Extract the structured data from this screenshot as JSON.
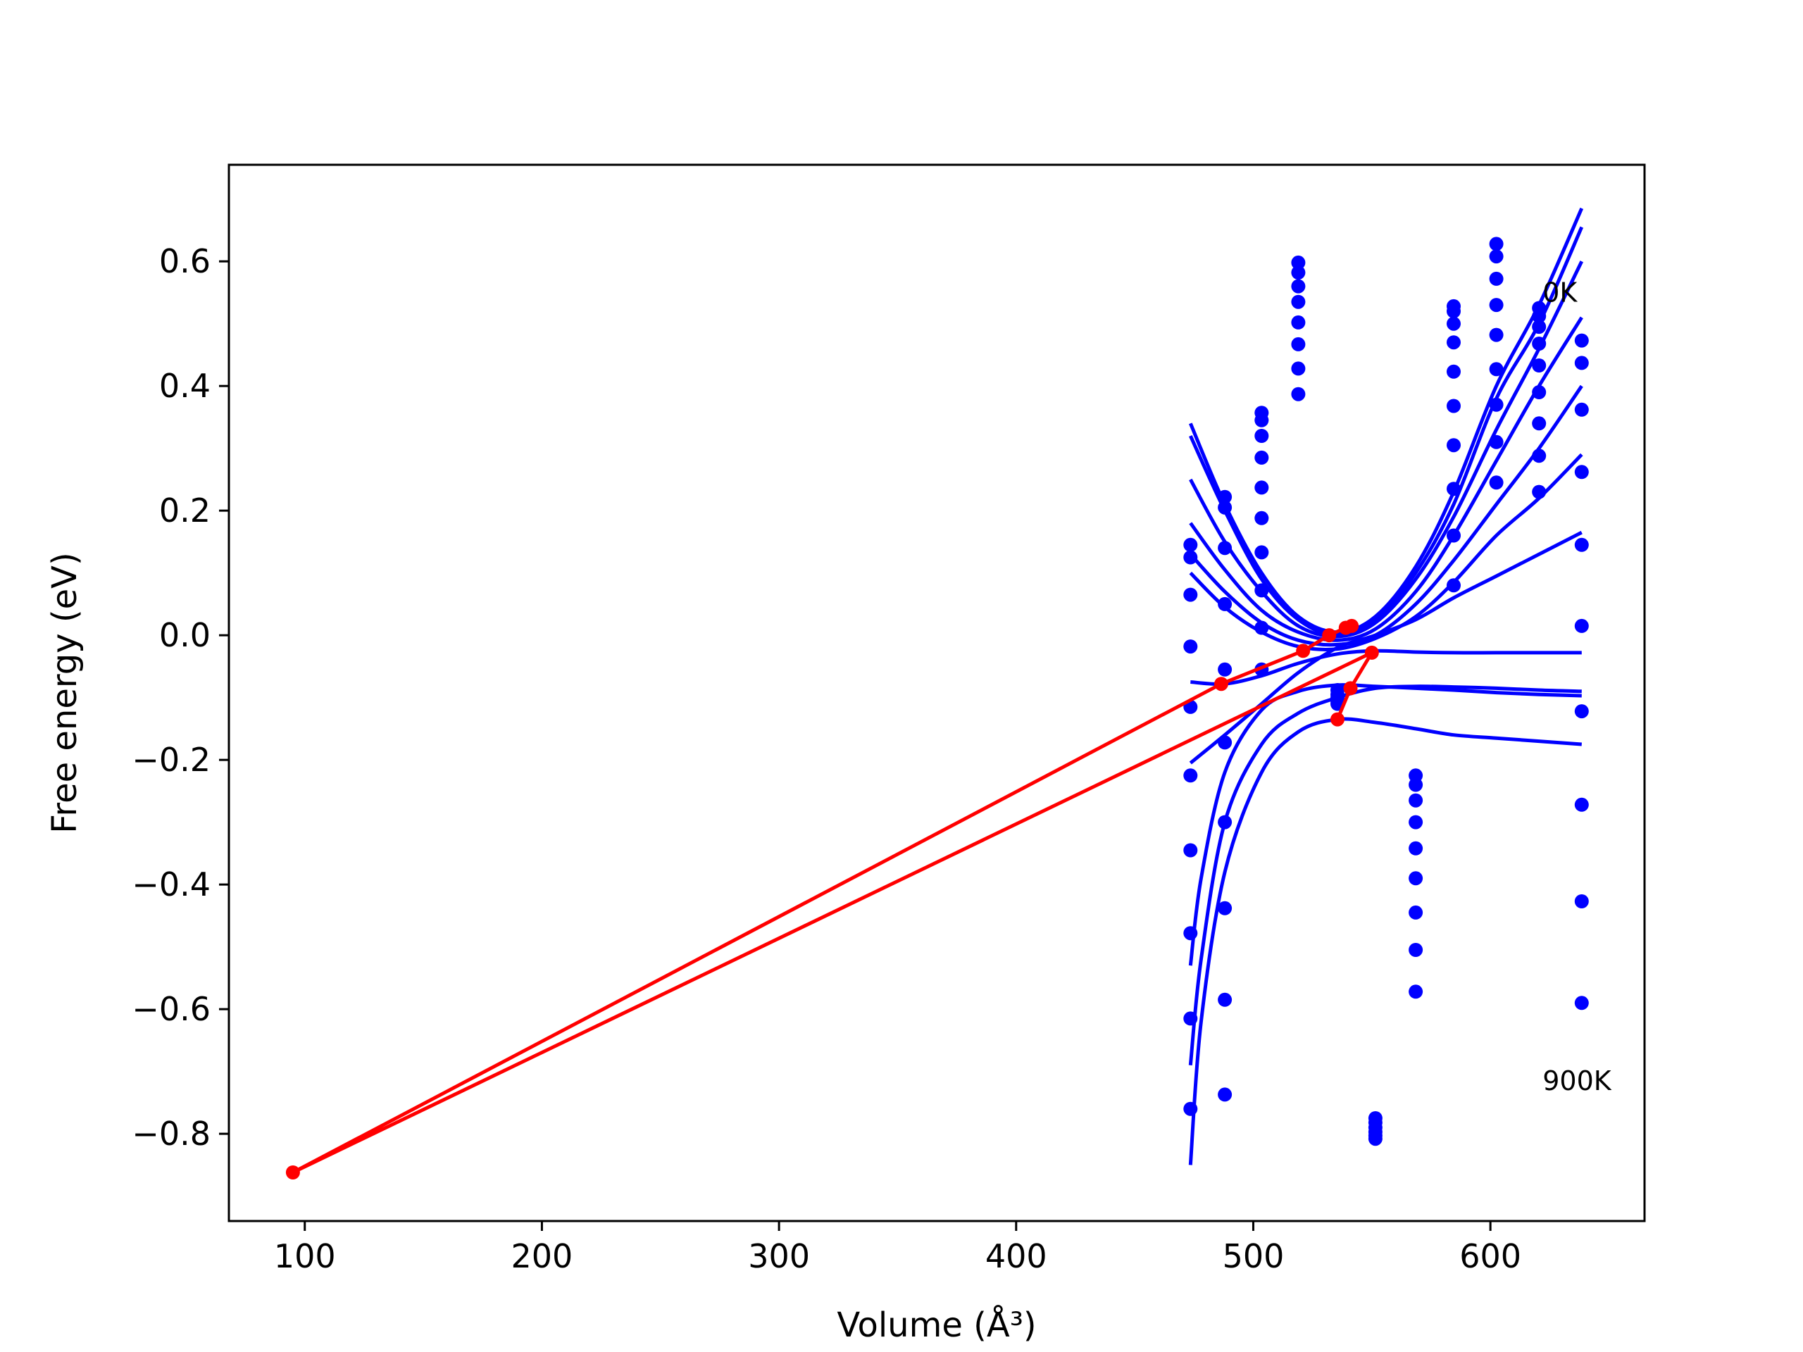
{
  "chart_data": {
    "type": "scatter",
    "xlabel": "Volume (Å³)",
    "ylabel": "Free energy (eV)",
    "xlim": [
      68,
      665
    ],
    "ylim": [
      -0.94,
      0.755
    ],
    "x_ticks": [
      100,
      200,
      300,
      400,
      500,
      600
    ],
    "x_tick_labels": [
      "100",
      "200",
      "300",
      "400",
      "500",
      "600"
    ],
    "y_ticks": [
      0.6,
      0.4,
      0.2,
      0.0,
      -0.2,
      -0.4,
      -0.6,
      -0.8
    ],
    "y_tick_labels": [
      "0.6",
      "0.4",
      "0.2",
      "0.0",
      "−0.2",
      "−0.4",
      "−0.6",
      "−0.8"
    ],
    "grid": false,
    "legend": "none",
    "annotations": [
      {
        "text": "0K",
        "x": 622,
        "y": 0.535
      },
      {
        "text": "900K",
        "x": 622,
        "y": -0.73
      }
    ],
    "colors": {
      "points": "#0000ff",
      "fits": "#0000ff",
      "minima": "#ff0000",
      "axes": "#000000"
    },
    "series": [
      {
        "kind": "scatter",
        "color": "#0000ff",
        "points": [
          [
            473.5,
            0.145
          ],
          [
            473.5,
            0.125
          ],
          [
            473.5,
            0.065
          ],
          [
            473.5,
            -0.018
          ],
          [
            473.5,
            -0.115
          ],
          [
            473.5,
            -0.225
          ],
          [
            473.5,
            -0.345
          ],
          [
            473.5,
            -0.478
          ],
          [
            473.5,
            -0.615
          ],
          [
            473.5,
            -0.76
          ],
          [
            488,
            0.222
          ],
          [
            488,
            0.205
          ],
          [
            488,
            0.14
          ],
          [
            488,
            0.05
          ],
          [
            488,
            -0.055
          ],
          [
            488,
            -0.172
          ],
          [
            488,
            -0.3
          ],
          [
            488,
            -0.438
          ],
          [
            488,
            -0.585
          ],
          [
            488,
            -0.737
          ],
          [
            503.5,
            0.357
          ],
          [
            503.5,
            0.345
          ],
          [
            503.5,
            0.32
          ],
          [
            503.5,
            0.285
          ],
          [
            503.5,
            0.237
          ],
          [
            503.5,
            0.188
          ],
          [
            503.5,
            0.133
          ],
          [
            503.5,
            0.072
          ],
          [
            503.5,
            0.012
          ],
          [
            503.5,
            -0.055
          ],
          [
            519,
            0.598
          ],
          [
            519,
            0.582
          ],
          [
            519,
            0.56
          ],
          [
            519,
            0.535
          ],
          [
            519,
            0.502
          ],
          [
            519,
            0.467
          ],
          [
            519,
            0.428
          ],
          [
            519,
            0.387
          ],
          [
            535.5,
            -0.088
          ],
          [
            535.5,
            -0.095
          ],
          [
            535.5,
            -0.1
          ],
          [
            535.5,
            -0.105
          ],
          [
            535.5,
            -0.11
          ],
          [
            551.5,
            -0.775
          ],
          [
            551.5,
            -0.782
          ],
          [
            551.5,
            -0.79
          ],
          [
            551.5,
            -0.797
          ],
          [
            551.5,
            -0.803
          ],
          [
            551.5,
            -0.808
          ],
          [
            568.5,
            -0.225
          ],
          [
            568.5,
            -0.24
          ],
          [
            568.5,
            -0.265
          ],
          [
            568.5,
            -0.3
          ],
          [
            568.5,
            -0.342
          ],
          [
            568.5,
            -0.39
          ],
          [
            568.5,
            -0.445
          ],
          [
            568.5,
            -0.505
          ],
          [
            568.5,
            -0.572
          ],
          [
            584.5,
            0.528
          ],
          [
            584.5,
            0.52
          ],
          [
            584.5,
            0.5
          ],
          [
            584.5,
            0.47
          ],
          [
            584.5,
            0.423
          ],
          [
            584.5,
            0.368
          ],
          [
            584.5,
            0.305
          ],
          [
            584.5,
            0.235
          ],
          [
            584.5,
            0.16
          ],
          [
            584.5,
            0.08
          ],
          [
            602.5,
            0.628
          ],
          [
            602.5,
            0.608
          ],
          [
            602.5,
            0.572
          ],
          [
            602.5,
            0.53
          ],
          [
            602.5,
            0.482
          ],
          [
            602.5,
            0.427
          ],
          [
            602.5,
            0.37
          ],
          [
            602.5,
            0.31
          ],
          [
            602.5,
            0.245
          ],
          [
            620.5,
            0.525
          ],
          [
            620.5,
            0.512
          ],
          [
            620.5,
            0.495
          ],
          [
            620.5,
            0.468
          ],
          [
            620.5,
            0.433
          ],
          [
            620.5,
            0.39
          ],
          [
            620.5,
            0.34
          ],
          [
            620.5,
            0.288
          ],
          [
            620.5,
            0.23
          ],
          [
            638.5,
            0.473
          ],
          [
            638.5,
            0.437
          ],
          [
            638.5,
            0.362
          ],
          [
            638.5,
            0.262
          ],
          [
            638.5,
            0.145
          ],
          [
            638.5,
            0.015
          ],
          [
            638.5,
            -0.122
          ],
          [
            638.5,
            -0.272
          ],
          [
            638.5,
            -0.427
          ],
          [
            638.5,
            -0.59
          ]
        ]
      },
      {
        "kind": "fit_curves",
        "color": "#0000ff",
        "curves": [
          [
            [
              473.5,
              0.34
            ],
            [
              488,
              0.21
            ],
            [
              503.5,
              0.1
            ],
            [
              519,
              0.03
            ],
            [
              535.5,
              0.005
            ],
            [
              551.5,
              0.03
            ],
            [
              568.5,
              0.11
            ],
            [
              584.5,
              0.23
            ],
            [
              602.5,
              0.4
            ],
            [
              620.5,
              0.53
            ],
            [
              638.5,
              0.685
            ]
          ],
          [
            [
              473.5,
              0.32
            ],
            [
              488,
              0.2
            ],
            [
              503.5,
              0.09
            ],
            [
              519,
              0.025
            ],
            [
              535.5,
              0.0
            ],
            [
              551.5,
              0.025
            ],
            [
              568.5,
              0.1
            ],
            [
              584.5,
              0.21
            ],
            [
              602.5,
              0.38
            ],
            [
              620.5,
              0.5
            ],
            [
              638.5,
              0.655
            ]
          ],
          [
            [
              473.5,
              0.25
            ],
            [
              488,
              0.15
            ],
            [
              503.5,
              0.07
            ],
            [
              519,
              0.015
            ],
            [
              535.5,
              -0.002
            ],
            [
              551.5,
              0.02
            ],
            [
              568.5,
              0.09
            ],
            [
              584.5,
              0.19
            ],
            [
              602.5,
              0.33
            ],
            [
              620.5,
              0.46
            ],
            [
              638.5,
              0.6
            ]
          ],
          [
            [
              473.5,
              0.18
            ],
            [
              488,
              0.105
            ],
            [
              503.5,
              0.04
            ],
            [
              519,
              0.005
            ],
            [
              535.5,
              -0.008
            ],
            [
              551.5,
              0.01
            ],
            [
              568.5,
              0.07
            ],
            [
              584.5,
              0.16
            ],
            [
              602.5,
              0.28
            ],
            [
              620.5,
              0.4
            ],
            [
              638.5,
              0.51
            ]
          ],
          [
            [
              473.5,
              0.13
            ],
            [
              488,
              0.07
            ],
            [
              503.5,
              0.02
            ],
            [
              519,
              -0.008
            ],
            [
              535.5,
              -0.015
            ],
            [
              551.5,
              0.0
            ],
            [
              568.5,
              0.05
            ],
            [
              584.5,
              0.12
            ],
            [
              602.5,
              0.21
            ],
            [
              620.5,
              0.3
            ],
            [
              638.5,
              0.4
            ]
          ],
          [
            [
              473.5,
              0.1
            ],
            [
              488,
              0.045
            ],
            [
              503.5,
              0.005
            ],
            [
              519,
              -0.018
            ],
            [
              535.5,
              -0.022
            ],
            [
              551.5,
              -0.005
            ],
            [
              568.5,
              0.03
            ],
            [
              584.5,
              0.085
            ],
            [
              602.5,
              0.16
            ],
            [
              620.5,
              0.22
            ],
            [
              638.5,
              0.29
            ]
          ],
          [
            [
              473.5,
              -0.205
            ],
            [
              488,
              -0.16
            ],
            [
              503.5,
              -0.11
            ],
            [
              519,
              -0.06
            ],
            [
              535.5,
              -0.02
            ],
            [
              551.5,
              0.0
            ],
            [
              568.5,
              0.025
            ],
            [
              584.5,
              0.06
            ],
            [
              602.5,
              0.095
            ],
            [
              620.5,
              0.13
            ],
            [
              638.5,
              0.165
            ]
          ],
          [
            [
              473.5,
              -0.075
            ],
            [
              488,
              -0.078
            ],
            [
              503.5,
              -0.065
            ],
            [
              519,
              -0.045
            ],
            [
              535.5,
              -0.03
            ],
            [
              551.5,
              -0.025
            ],
            [
              568.5,
              -0.027
            ],
            [
              584.5,
              -0.028
            ],
            [
              602.5,
              -0.028
            ],
            [
              620.5,
              -0.028
            ],
            [
              638.5,
              -0.028
            ]
          ],
          [
            [
              473.5,
              -0.53
            ],
            [
              478,
              -0.39
            ],
            [
              488,
              -0.22
            ],
            [
              503.5,
              -0.12
            ],
            [
              519,
              -0.09
            ],
            [
              535.5,
              -0.08
            ],
            [
              551.5,
              -0.082
            ],
            [
              568.5,
              -0.085
            ],
            [
              584.5,
              -0.088
            ],
            [
              602.5,
              -0.092
            ],
            [
              620.5,
              -0.095
            ],
            [
              638.5,
              -0.097
            ]
          ],
          [
            [
              473.5,
              -0.69
            ],
            [
              478,
              -0.52
            ],
            [
              488,
              -0.3
            ],
            [
              503.5,
              -0.175
            ],
            [
              519,
              -0.125
            ],
            [
              535.5,
              -0.1
            ],
            [
              551.5,
              -0.085
            ],
            [
              568.5,
              -0.082
            ],
            [
              584.5,
              -0.083
            ],
            [
              602.5,
              -0.085
            ],
            [
              620.5,
              -0.088
            ],
            [
              638.5,
              -0.09
            ]
          ],
          [
            [
              473.5,
              -0.85
            ],
            [
              478,
              -0.62
            ],
            [
              488,
              -0.38
            ],
            [
              503.5,
              -0.22
            ],
            [
              519,
              -0.155
            ],
            [
              535.5,
              -0.135
            ],
            [
              551.5,
              -0.14
            ],
            [
              568.5,
              -0.15
            ],
            [
              584.5,
              -0.16
            ],
            [
              602.5,
              -0.165
            ],
            [
              620.5,
              -0.17
            ],
            [
              638.5,
              -0.175
            ]
          ]
        ]
      },
      {
        "kind": "line_markers",
        "color": "#ff0000",
        "points": [
          [
            541.5,
            0.015
          ],
          [
            539,
            0.012
          ],
          [
            532,
            0.0
          ],
          [
            521,
            -0.025
          ],
          [
            486.5,
            -0.078
          ],
          [
            95,
            -0.862
          ],
          [
            550,
            -0.028
          ],
          [
            541,
            -0.085
          ],
          [
            535.5,
            -0.135
          ]
        ]
      }
    ]
  }
}
